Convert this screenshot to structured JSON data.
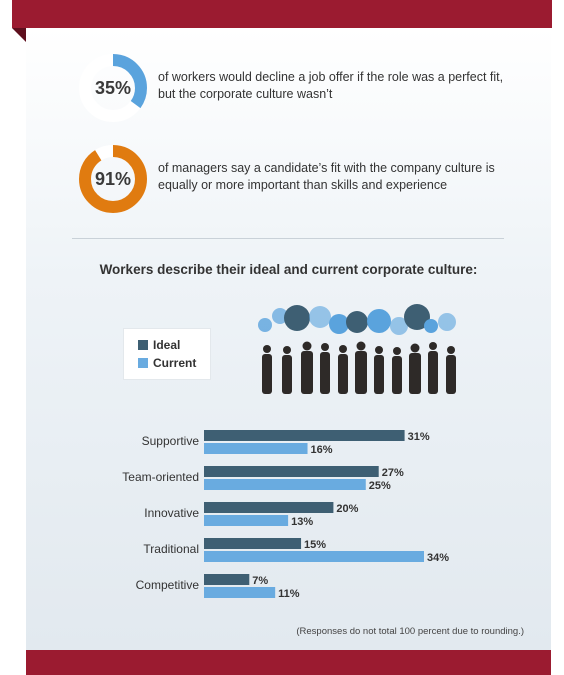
{
  "stats": [
    {
      "value": "35%",
      "percent": 35,
      "color": "#5aa3dd",
      "text": "of workers would decline a job offer if the role was a perfect fit, but the corporate culture wasn’t"
    },
    {
      "value": "91%",
      "percent": 91,
      "color": "#e07b10",
      "text": "of managers say a candidate’s fit with the company culture is equally or more important than skills and experience"
    }
  ],
  "colors": {
    "banner": "#9b1b30",
    "ideal": "#3e5f73",
    "current": "#69abe0"
  },
  "chart_data": {
    "type": "bar",
    "orientation": "horizontal",
    "title": "Workers describe their ideal and current corporate culture:",
    "categories": [
      "Supportive",
      "Team-oriented",
      "Innovative",
      "Traditional",
      "Competitive"
    ],
    "series": [
      {
        "name": "Ideal",
        "values": [
          31,
          27,
          20,
          15,
          7
        ],
        "labels": [
          "31%",
          "27%",
          "20%",
          "15%",
          "7%"
        ]
      },
      {
        "name": "Current",
        "values": [
          16,
          25,
          13,
          34,
          11
        ],
        "labels": [
          "16%",
          "25%",
          "13%",
          "34%",
          "11%"
        ]
      }
    ],
    "unit": "%",
    "xlim": [
      0,
      34
    ],
    "legend": "top-left",
    "grid": false,
    "footnote": "(Responses do not total 100 percent due to rounding.)"
  }
}
